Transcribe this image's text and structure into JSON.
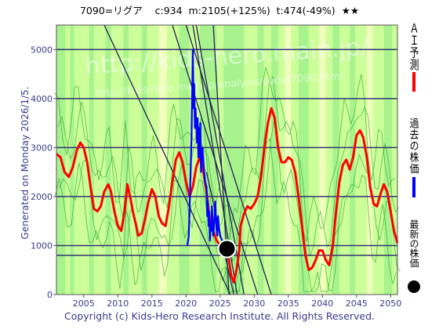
{
  "header": {
    "title": "7090=リグア    c:934  m:2105(+125%)  t:474(-49%)  ★★",
    "generated": "Generated on Monday 2026/1/5.",
    "footer": "Copyright (c) Kids-Hero Research Institute. All Rights Reserved.",
    "watermark1": "http://kids-hero.main.jp/",
    "watermark2": "http://kids-hero.main.jp/analysis/code/7090.html"
  },
  "chart_data": {
    "type": "line",
    "xlim": [
      2001,
      2051
    ],
    "ylim": [
      0,
      5500
    ],
    "xticks": [
      2005,
      2010,
      2015,
      2020,
      2025,
      2030,
      2035,
      2040,
      2045,
      2050
    ],
    "yticks": [
      0,
      1000,
      2000,
      3000,
      4000,
      5000
    ],
    "legend": [
      {
        "label": "ＡＩ予測",
        "color": "#ff0000"
      },
      {
        "label": "過去の株価",
        "color": "#0000ff"
      },
      {
        "label": "最新の株価",
        "color": "#000000"
      }
    ],
    "colors": {
      "ai": "#ff0000",
      "past": "#0000ff",
      "latest": "#000000",
      "band_light": "#ccff99",
      "band_mid": "#99ee88",
      "band_pale": "#ffffcc",
      "hline": "#333377",
      "trend": "#222255"
    },
    "horizontal_lines": [
      5000,
      4000,
      3000,
      2000,
      1000,
      800
    ],
    "latest_point": {
      "x": 2026.0,
      "y": 934
    },
    "series": [
      {
        "key": "ai",
        "points": [
          [
            2001.0,
            2870
          ],
          [
            2001.6,
            2800
          ],
          [
            2002.2,
            2500
          ],
          [
            2002.8,
            2400
          ],
          [
            2003.4,
            2600
          ],
          [
            2004.0,
            2950
          ],
          [
            2004.5,
            3100
          ],
          [
            2005.0,
            3000
          ],
          [
            2005.5,
            2700
          ],
          [
            2006.0,
            2200
          ],
          [
            2006.5,
            1750
          ],
          [
            2007.0,
            1700
          ],
          [
            2007.5,
            1800
          ],
          [
            2008.0,
            2100
          ],
          [
            2008.6,
            2250
          ],
          [
            2009.0,
            2100
          ],
          [
            2009.5,
            1700
          ],
          [
            2010.0,
            1400
          ],
          [
            2010.5,
            1300
          ],
          [
            2011.0,
            1700
          ],
          [
            2011.4,
            2250
          ],
          [
            2011.8,
            2000
          ],
          [
            2012.2,
            1700
          ],
          [
            2012.7,
            1400
          ],
          [
            2013.0,
            1200
          ],
          [
            2013.5,
            1250
          ],
          [
            2014.0,
            1550
          ],
          [
            2014.5,
            1900
          ],
          [
            2015.0,
            2150
          ],
          [
            2015.5,
            2000
          ],
          [
            2016.0,
            1600
          ],
          [
            2016.5,
            1450
          ],
          [
            2017.0,
            1400
          ],
          [
            2017.5,
            1800
          ],
          [
            2018.0,
            2300
          ],
          [
            2018.5,
            2750
          ],
          [
            2019.0,
            2900
          ],
          [
            2019.5,
            2700
          ],
          [
            2020.0,
            2300
          ],
          [
            2020.5,
            2000
          ],
          [
            2021.0,
            2200
          ],
          [
            2021.5,
            2600
          ],
          [
            2022.0,
            2800
          ],
          [
            2022.5,
            2550
          ],
          [
            2023.0,
            2100
          ],
          [
            2023.5,
            1500
          ],
          [
            2024.0,
            1300
          ],
          [
            2024.5,
            1100
          ],
          [
            2025.0,
            1000
          ],
          [
            2025.5,
            1050
          ],
          [
            2026.0,
            1000
          ],
          [
            2026.3,
            700
          ],
          [
            2026.6,
            400
          ],
          [
            2027.0,
            250
          ],
          [
            2027.4,
            500
          ],
          [
            2027.8,
            900
          ],
          [
            2028.0,
            1400
          ],
          [
            2028.5,
            1650
          ],
          [
            2029.0,
            1800
          ],
          [
            2029.5,
            1750
          ],
          [
            2030.0,
            1850
          ],
          [
            2030.5,
            2000
          ],
          [
            2031.0,
            2400
          ],
          [
            2031.5,
            3000
          ],
          [
            2032.0,
            3500
          ],
          [
            2032.5,
            3800
          ],
          [
            2033.0,
            3600
          ],
          [
            2033.5,
            3000
          ],
          [
            2034.0,
            2700
          ],
          [
            2034.5,
            2700
          ],
          [
            2035.0,
            2800
          ],
          [
            2035.5,
            2750
          ],
          [
            2036.0,
            2500
          ],
          [
            2036.5,
            2000
          ],
          [
            2037.0,
            1400
          ],
          [
            2037.5,
            800
          ],
          [
            2038.0,
            500
          ],
          [
            2038.5,
            550
          ],
          [
            2039.0,
            700
          ],
          [
            2039.5,
            900
          ],
          [
            2040.0,
            900
          ],
          [
            2040.5,
            700
          ],
          [
            2041.0,
            600
          ],
          [
            2041.5,
            1000
          ],
          [
            2042.0,
            1700
          ],
          [
            2042.5,
            2300
          ],
          [
            2043.0,
            2650
          ],
          [
            2043.5,
            2750
          ],
          [
            2044.0,
            2550
          ],
          [
            2044.5,
            2800
          ],
          [
            2045.0,
            3250
          ],
          [
            2045.5,
            3350
          ],
          [
            2046.0,
            3200
          ],
          [
            2046.5,
            2800
          ],
          [
            2047.0,
            2200
          ],
          [
            2047.5,
            1850
          ],
          [
            2048.0,
            1800
          ],
          [
            2048.5,
            2050
          ],
          [
            2049.0,
            2250
          ],
          [
            2049.5,
            2100
          ],
          [
            2050.0,
            1700
          ],
          [
            2050.5,
            1300
          ],
          [
            2051.0,
            1050
          ]
        ]
      },
      {
        "key": "past",
        "points": [
          [
            2020.2,
            1000
          ],
          [
            2020.4,
            1200
          ],
          [
            2020.6,
            2100
          ],
          [
            2020.8,
            3200
          ],
          [
            2021.0,
            5000
          ],
          [
            2021.1,
            3800
          ],
          [
            2021.2,
            4300
          ],
          [
            2021.3,
            3400
          ],
          [
            2021.4,
            3800
          ],
          [
            2021.6,
            3100
          ],
          [
            2021.7,
            3600
          ],
          [
            2021.8,
            2800
          ],
          [
            2021.9,
            3400
          ],
          [
            2022.0,
            2800
          ],
          [
            2022.1,
            3500
          ],
          [
            2022.2,
            2500
          ],
          [
            2022.4,
            3000
          ],
          [
            2022.6,
            2600
          ],
          [
            2022.8,
            2300
          ],
          [
            2023.0,
            2200
          ],
          [
            2023.1,
            1600
          ],
          [
            2023.2,
            1900
          ],
          [
            2023.3,
            1400
          ],
          [
            2023.4,
            1700
          ],
          [
            2023.5,
            1100
          ],
          [
            2023.6,
            1400
          ],
          [
            2023.7,
            1300
          ],
          [
            2023.8,
            1800
          ],
          [
            2023.9,
            1500
          ],
          [
            2024.0,
            1200
          ],
          [
            2024.1,
            1400
          ],
          [
            2024.2,
            1600
          ],
          [
            2024.3,
            1900
          ],
          [
            2024.4,
            1500
          ],
          [
            2024.5,
            1300
          ],
          [
            2024.6,
            1200
          ],
          [
            2024.7,
            1600
          ],
          [
            2024.8,
            1400
          ],
          [
            2025.0,
            1200
          ],
          [
            2025.3,
            1100
          ],
          [
            2025.6,
            1000
          ],
          [
            2026.0,
            934
          ]
        ]
      }
    ],
    "trend_lines": [
      [
        [
          2008.0,
          5500
        ],
        [
          2026.5,
          0
        ]
      ],
      [
        [
          2018.0,
          5500
        ],
        [
          2030.5,
          0
        ]
      ],
      [
        [
          2020.0,
          5500
        ],
        [
          2032.5,
          0
        ]
      ],
      [
        [
          2021.0,
          5500
        ],
        [
          2027.5,
          0
        ]
      ],
      [
        [
          2021.5,
          5500
        ],
        [
          2028.5,
          0
        ]
      ],
      [
        [
          2024.0,
          5500
        ],
        [
          2026.3,
          0
        ]
      ],
      [
        [
          2023.0,
          2500
        ],
        [
          2027.0,
          0
        ]
      ]
    ]
  }
}
